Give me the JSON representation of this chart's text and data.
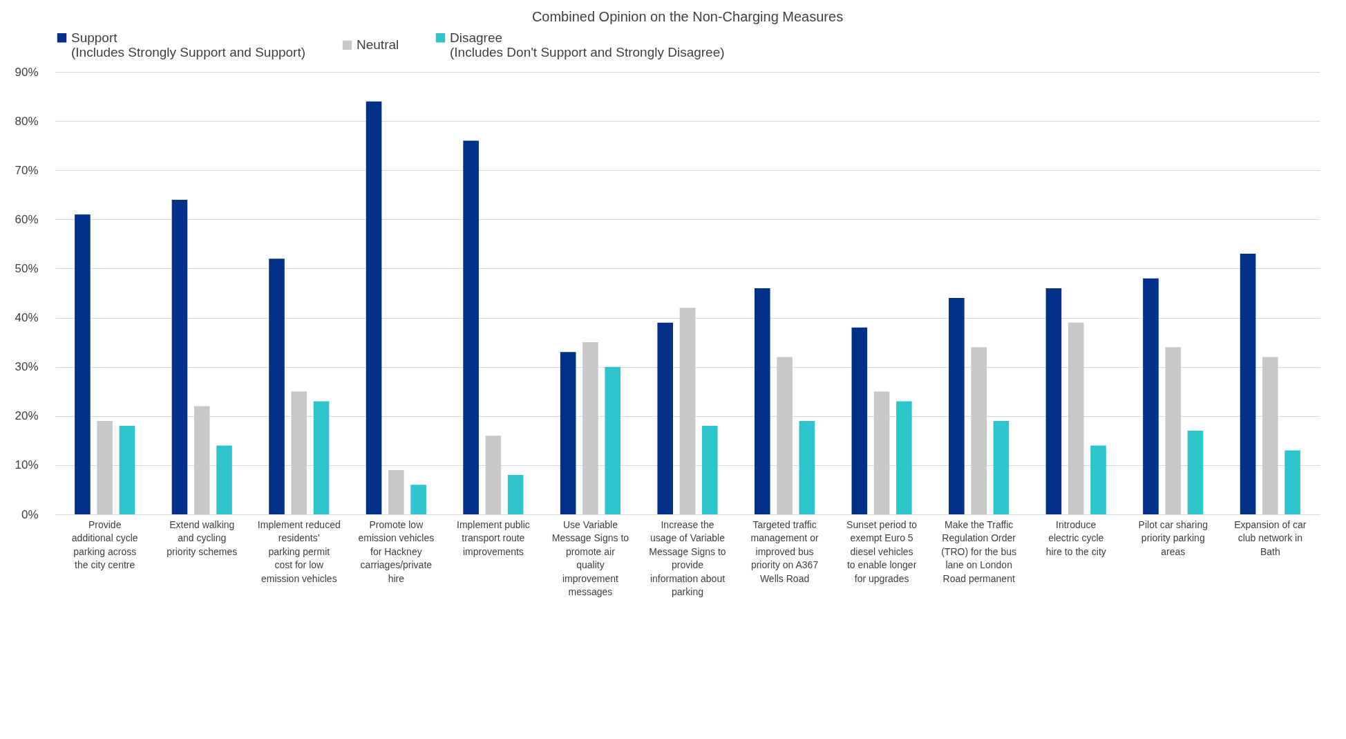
{
  "chart_data": {
    "type": "bar",
    "title": "Combined Opinion on the Non-Charging Measures",
    "categories": [
      "Provide additional cycle parking across the city centre",
      "Extend walking and cycling priority schemes",
      "Implement reduced residents’ parking permit cost for low emission vehicles",
      "Promote low emission vehicles for Hackney carriages/private hire",
      "Implement public transport route improvements",
      "Use Variable Message Signs to promote air quality improvement messages",
      "Increase the usage of Variable Message Signs to provide information about parking",
      "Targeted traffic management or improved bus priority on A367 Wells Road",
      "Sunset period to exempt Euro 5 diesel vehicles to enable longer for upgrades",
      "Make the Traffic Regulation Order (TRO) for the bus lane on London Road permanent",
      "Introduce electric cycle hire to the city",
      "Pilot car sharing priority parking areas",
      "Expansion of car club network in Bath"
    ],
    "series": [
      {
        "name": "Support (Includes Strongly Support and Support)",
        "color": "#003087",
        "values": [
          61,
          64,
          52,
          84,
          76,
          33,
          39,
          46,
          38,
          44,
          46,
          48,
          53
        ]
      },
      {
        "name": "Neutral",
        "color": "#c8c8c8",
        "values": [
          19,
          22,
          25,
          9,
          16,
          35,
          42,
          32,
          25,
          34,
          39,
          34,
          32
        ]
      },
      {
        "name": "Disagree (Includes Don't Support and Strongly Disagree)",
        "color": "#2ec4cc",
        "values": [
          18,
          14,
          23,
          6,
          8,
          30,
          18,
          19,
          23,
          19,
          14,
          17,
          13
        ]
      }
    ],
    "ylim": [
      0,
      90
    ],
    "yticks": [
      {
        "value": 0,
        "label": "0%"
      },
      {
        "value": 10,
        "label": "10%"
      },
      {
        "value": 20,
        "label": "20%"
      },
      {
        "value": 30,
        "label": "30%"
      },
      {
        "value": 40,
        "label": "40%"
      },
      {
        "value": 50,
        "label": "50%"
      },
      {
        "value": 60,
        "label": "60%"
      },
      {
        "value": 70,
        "label": "70%"
      },
      {
        "value": 80,
        "label": "80%"
      },
      {
        "value": 90,
        "label": "90%"
      }
    ],
    "grid": "y",
    "legend": "top"
  }
}
